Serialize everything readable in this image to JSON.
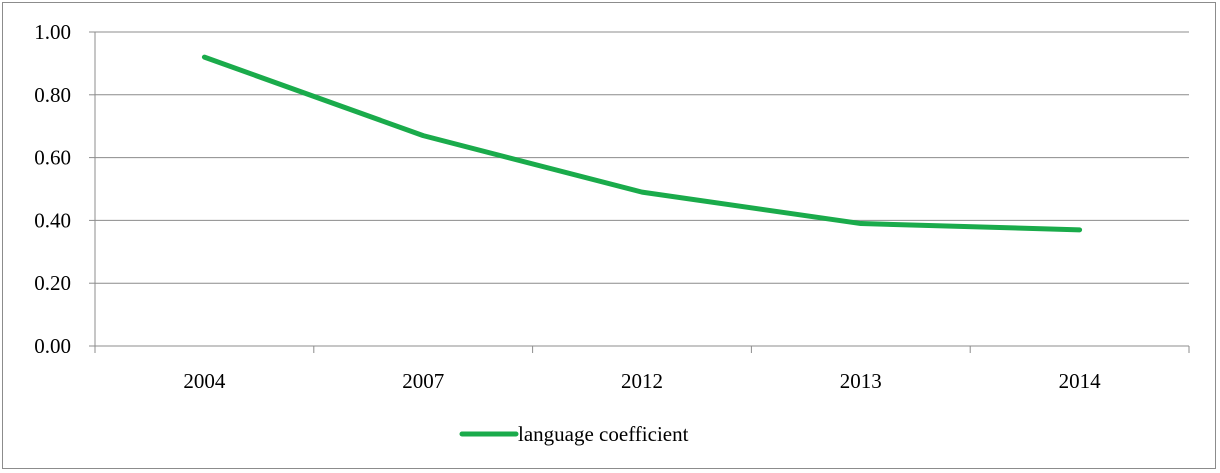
{
  "chart_data": {
    "type": "line",
    "categories": [
      "2004",
      "2007",
      "2012",
      "2013",
      "2014"
    ],
    "series": [
      {
        "name": "language coefficient",
        "values": [
          0.92,
          0.67,
          0.49,
          0.39,
          0.37
        ],
        "color": "#1aab4b"
      }
    ],
    "yticks": [
      "0.00",
      "0.20",
      "0.40",
      "0.60",
      "0.80",
      "1.00"
    ],
    "ylim": [
      0,
      1
    ],
    "grid": true,
    "legend": "bottom",
    "title": "",
    "xlabel": "",
    "ylabel": ""
  }
}
